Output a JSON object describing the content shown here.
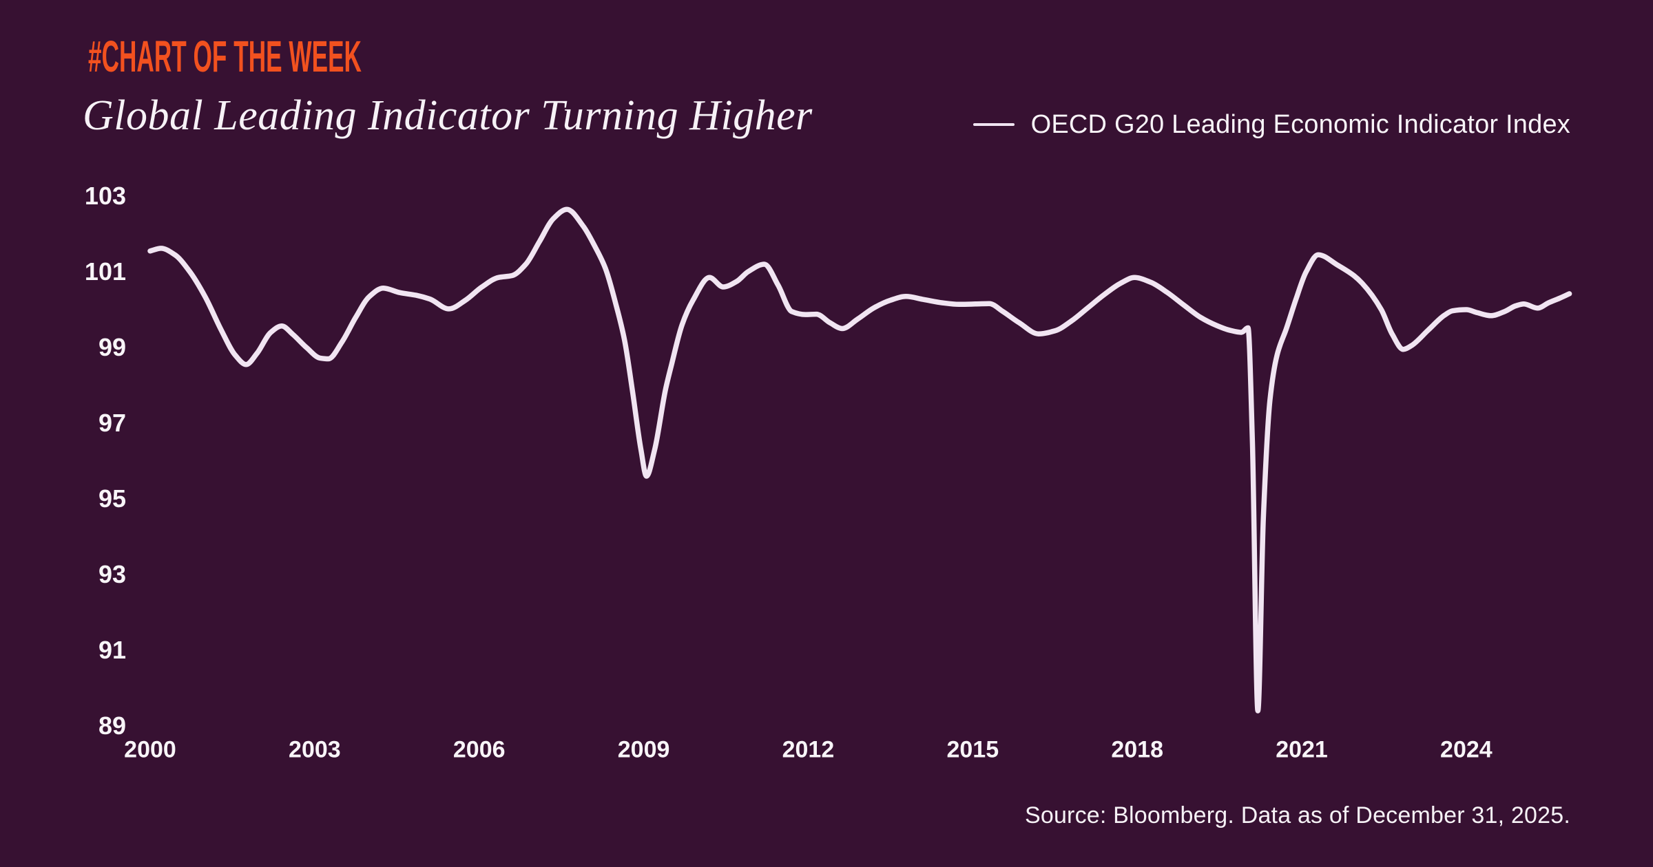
{
  "colors": {
    "background": "#371132",
    "accent_orange": "#F2511F",
    "line_color": "#F1E5F2",
    "text_color": "#F7F2F7"
  },
  "header": {
    "kicker": "#CHART OF THE WEEK",
    "title": "Global Leading Indicator Turning Higher"
  },
  "legend": {
    "label": "OECD G20 Leading Economic Indicator Index"
  },
  "footer": {
    "source": "Source: Bloomberg. Data as of December 31, 2025."
  },
  "chart_data": {
    "type": "line",
    "title": "Global Leading Indicator Turning Higher",
    "xlabel": "",
    "ylabel": "",
    "x_range": [
      2000,
      2026
    ],
    "y_range": [
      89,
      103
    ],
    "x_ticks": [
      2000,
      2003,
      2006,
      2009,
      2012,
      2015,
      2018,
      2021,
      2024
    ],
    "y_ticks": [
      103,
      101,
      99,
      97,
      95,
      93,
      91,
      89
    ],
    "grid": false,
    "legend_position": "top-right",
    "series": [
      {
        "name": "OECD G20 Leading Economic Indicator Index",
        "points": [
          [
            2000.0,
            101.55
          ],
          [
            2000.2,
            101.62
          ],
          [
            2000.45,
            101.45
          ],
          [
            2000.7,
            101.05
          ],
          [
            2001.0,
            100.35
          ],
          [
            2001.3,
            99.45
          ],
          [
            2001.55,
            98.8
          ],
          [
            2001.75,
            98.55
          ],
          [
            2001.95,
            98.85
          ],
          [
            2002.2,
            99.4
          ],
          [
            2002.4,
            99.57
          ],
          [
            2002.6,
            99.35
          ],
          [
            2002.85,
            99.0
          ],
          [
            2003.1,
            98.72
          ],
          [
            2003.25,
            98.7
          ],
          [
            2003.5,
            99.15
          ],
          [
            2003.75,
            99.8
          ],
          [
            2004.0,
            100.35
          ],
          [
            2004.25,
            100.57
          ],
          [
            2004.55,
            100.45
          ],
          [
            2004.85,
            100.38
          ],
          [
            2005.1,
            100.28
          ],
          [
            2005.45,
            100.02
          ],
          [
            2005.75,
            100.25
          ],
          [
            2006.05,
            100.6
          ],
          [
            2006.35,
            100.85
          ],
          [
            2006.6,
            100.9
          ],
          [
            2006.85,
            101.2
          ],
          [
            2007.1,
            101.8
          ],
          [
            2007.35,
            102.4
          ],
          [
            2007.6,
            102.65
          ],
          [
            2007.9,
            102.2
          ],
          [
            2008.1,
            101.7
          ],
          [
            2008.3,
            101.1
          ],
          [
            2008.5,
            100.1
          ],
          [
            2008.65,
            99.2
          ],
          [
            2008.8,
            97.8
          ],
          [
            2008.95,
            96.3
          ],
          [
            2009.05,
            95.6
          ],
          [
            2009.2,
            96.3
          ],
          [
            2009.4,
            97.9
          ],
          [
            2009.5,
            98.5
          ],
          [
            2009.7,
            99.6
          ],
          [
            2009.9,
            100.25
          ],
          [
            2010.2,
            100.85
          ],
          [
            2010.45,
            100.6
          ],
          [
            2010.7,
            100.75
          ],
          [
            2010.9,
            101.0
          ],
          [
            2011.2,
            101.2
          ],
          [
            2011.45,
            100.65
          ],
          [
            2011.7,
            99.95
          ],
          [
            2011.95,
            99.87
          ],
          [
            2012.15,
            99.88
          ],
          [
            2012.4,
            99.65
          ],
          [
            2012.62,
            99.5
          ],
          [
            2012.9,
            99.75
          ],
          [
            2013.2,
            100.05
          ],
          [
            2013.5,
            100.25
          ],
          [
            2013.78,
            100.35
          ],
          [
            2014.1,
            100.27
          ],
          [
            2014.45,
            100.18
          ],
          [
            2014.75,
            100.14
          ],
          [
            2015.05,
            100.15
          ],
          [
            2015.3,
            100.16
          ],
          [
            2015.55,
            99.95
          ],
          [
            2015.85,
            99.65
          ],
          [
            2016.2,
            99.36
          ],
          [
            2016.5,
            99.44
          ],
          [
            2016.8,
            99.7
          ],
          [
            2017.1,
            100.05
          ],
          [
            2017.4,
            100.4
          ],
          [
            2017.7,
            100.7
          ],
          [
            2017.95,
            100.85
          ],
          [
            2018.25,
            100.72
          ],
          [
            2018.55,
            100.45
          ],
          [
            2018.85,
            100.12
          ],
          [
            2019.15,
            99.8
          ],
          [
            2019.45,
            99.58
          ],
          [
            2019.7,
            99.45
          ],
          [
            2019.9,
            99.4
          ],
          [
            2020.02,
            99.52
          ],
          [
            2020.1,
            96.5
          ],
          [
            2020.2,
            89.4
          ],
          [
            2020.3,
            94.5
          ],
          [
            2020.42,
            97.6
          ],
          [
            2020.55,
            98.8
          ],
          [
            2020.72,
            99.5
          ],
          [
            2020.9,
            100.3
          ],
          [
            2021.08,
            101.0
          ],
          [
            2021.3,
            101.45
          ],
          [
            2021.65,
            101.18
          ],
          [
            2021.95,
            100.9
          ],
          [
            2022.1,
            100.7
          ],
          [
            2022.45,
            100.0
          ],
          [
            2022.65,
            99.35
          ],
          [
            2022.85,
            98.95
          ],
          [
            2023.0,
            99.05
          ],
          [
            2023.3,
            99.45
          ],
          [
            2023.6,
            99.85
          ],
          [
            2023.75,
            99.97
          ],
          [
            2024.0,
            100.0
          ],
          [
            2024.2,
            99.92
          ],
          [
            2024.45,
            99.84
          ],
          [
            2024.7,
            99.95
          ],
          [
            2024.9,
            100.1
          ],
          [
            2025.05,
            100.15
          ],
          [
            2025.3,
            100.04
          ],
          [
            2025.5,
            100.18
          ],
          [
            2025.7,
            100.3
          ],
          [
            2025.88,
            100.42
          ]
        ]
      }
    ]
  }
}
